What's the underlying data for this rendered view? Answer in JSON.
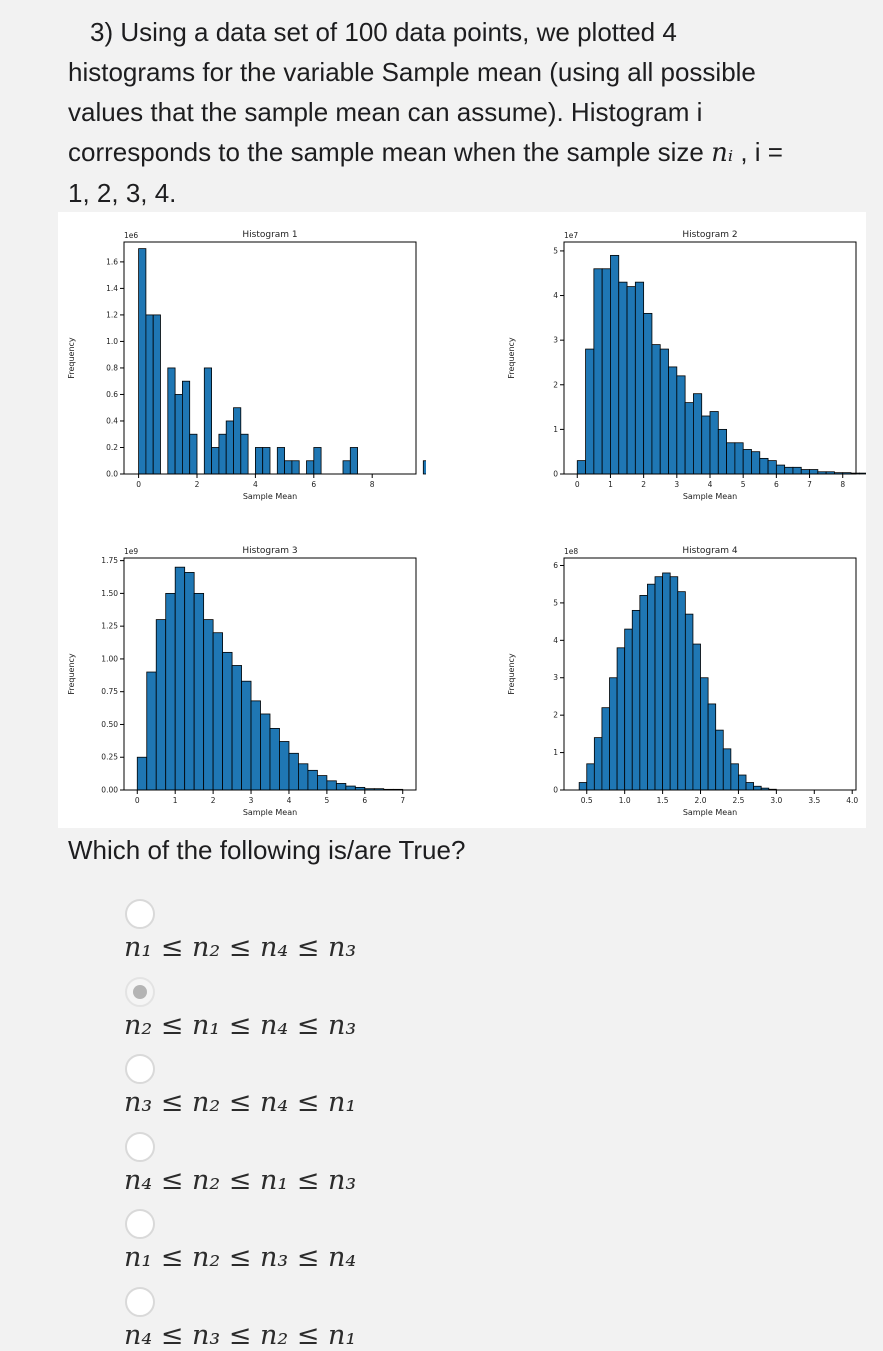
{
  "question": {
    "line1": "3)  Using a data set of 100 data points, we plotted 4",
    "line2": "histograms for the variable Sample mean (using all possible",
    "line3": "values that the sample mean can assume). Histogram i",
    "line4_text": "corresponds to the sample mean when the sample size ",
    "line4_math": "nᵢ",
    "line4_tail": " , i =",
    "line5": "1, 2, 3, 4."
  },
  "prompt": "Which of the following is/are True?",
  "colors": {
    "bar_fill": "#1f77b4",
    "bar_edge": "#000000",
    "selected": "#b4b4b4"
  },
  "options": [
    {
      "label": "n₁ ≤ n₂ ≤ n₄ ≤ n₃",
      "selected": false
    },
    {
      "label": "n₂ ≤ n₁ ≤ n₄ ≤ n₃",
      "selected": true
    },
    {
      "label": "n₃ ≤ n₂ ≤ n₄ ≤ n₁",
      "selected": false
    },
    {
      "label": "n₄ ≤ n₂ ≤ n₁ ≤ n₃",
      "selected": false
    },
    {
      "label": "n₁ ≤ n₂ ≤ n₃ ≤ n₄",
      "selected": false
    },
    {
      "label": "n₄ ≤ n₃ ≤ n₂ ≤ n₁",
      "selected": false
    }
  ],
  "chart_data": [
    {
      "type": "bar",
      "title": "Histogram 1",
      "xlabel": "Sample Mean",
      "ylabel": "Frequency",
      "scale_label": "1e6",
      "xlim": [
        -0.5,
        9.5
      ],
      "ylim": [
        0,
        1.75
      ],
      "xticks": [
        0,
        2,
        4,
        6,
        8
      ],
      "yticks": [
        "0.0",
        "0.2",
        "0.4",
        "0.6",
        "0.8",
        "1.0",
        "1.2",
        "1.4",
        "1.6"
      ],
      "bin_start": 0,
      "bin_width": 0.25,
      "values": [
        1.7,
        1.2,
        1.2,
        0,
        0.8,
        0.6,
        0.7,
        0.3,
        0,
        0.8,
        0.2,
        0.3,
        0.4,
        0.5,
        0.3,
        0,
        0.2,
        0.2,
        0,
        0.2,
        0.1,
        0.1,
        0,
        0.1,
        0.2,
        0,
        0,
        0,
        0.1,
        0.2,
        0,
        0,
        0,
        0,
        0,
        0,
        0,
        0,
        0,
        0.1
      ]
    },
    {
      "type": "bar",
      "title": "Histogram 2",
      "xlabel": "Sample Mean",
      "ylabel": "Frequency",
      "scale_label": "1e7",
      "xlim": [
        -0.4,
        8.4
      ],
      "ylim": [
        0,
        5.2
      ],
      "xticks": [
        0,
        1,
        2,
        3,
        4,
        5,
        6,
        7,
        8
      ],
      "yticks": [
        "0",
        "1",
        "2",
        "3",
        "4",
        "5"
      ],
      "bin_start": 0,
      "bin_width": 0.25,
      "values": [
        0.3,
        2.8,
        4.6,
        4.6,
        4.9,
        4.3,
        4.2,
        4.3,
        3.6,
        2.9,
        2.8,
        2.4,
        2.2,
        1.6,
        1.8,
        1.3,
        1.4,
        1.0,
        0.7,
        0.7,
        0.55,
        0.5,
        0.35,
        0.3,
        0.2,
        0.15,
        0.15,
        0.1,
        0.1,
        0.05,
        0.05,
        0.03,
        0.03,
        0.02,
        0.02,
        0.01
      ]
    },
    {
      "type": "bar",
      "title": "Histogram 3",
      "xlabel": "Sample Mean",
      "ylabel": "Frequency",
      "scale_label": "1e9",
      "xlim": [
        -0.35,
        7.35
      ],
      "ylim": [
        0,
        1.77
      ],
      "xticks": [
        0,
        1,
        2,
        3,
        4,
        5,
        6,
        7
      ],
      "yticks": [
        "0.00",
        "0.25",
        "0.50",
        "0.75",
        "1.00",
        "1.25",
        "1.50",
        "1.75"
      ],
      "bin_start": 0,
      "bin_width": 0.25,
      "values": [
        0.25,
        0.9,
        1.3,
        1.5,
        1.7,
        1.66,
        1.5,
        1.3,
        1.2,
        1.05,
        0.95,
        0.83,
        0.68,
        0.58,
        0.47,
        0.37,
        0.28,
        0.2,
        0.15,
        0.11,
        0.07,
        0.05,
        0.03,
        0.02,
        0.01,
        0.01,
        0.005,
        0.005
      ]
    },
    {
      "type": "bar",
      "title": "Histogram 4",
      "xlabel": "Sample Mean",
      "ylabel": "Frequency",
      "scale_label": "1e8",
      "xlim": [
        0.2,
        4.05
      ],
      "ylim": [
        0,
        6.2
      ],
      "xticks": [
        "0.5",
        "1.0",
        "1.5",
        "2.0",
        "2.5",
        "3.0",
        "3.5",
        "4.0"
      ],
      "yticks": [
        "0",
        "1",
        "2",
        "3",
        "4",
        "5",
        "6"
      ],
      "bin_start": 0.4,
      "bin_width": 0.1,
      "values": [
        0.2,
        0.7,
        1.4,
        2.2,
        3.0,
        3.8,
        4.3,
        4.8,
        5.2,
        5.5,
        5.7,
        5.8,
        5.7,
        5.3,
        4.7,
        3.9,
        3.0,
        2.3,
        1.6,
        1.1,
        0.7,
        0.4,
        0.2,
        0.1,
        0.05,
        0.02
      ]
    }
  ]
}
